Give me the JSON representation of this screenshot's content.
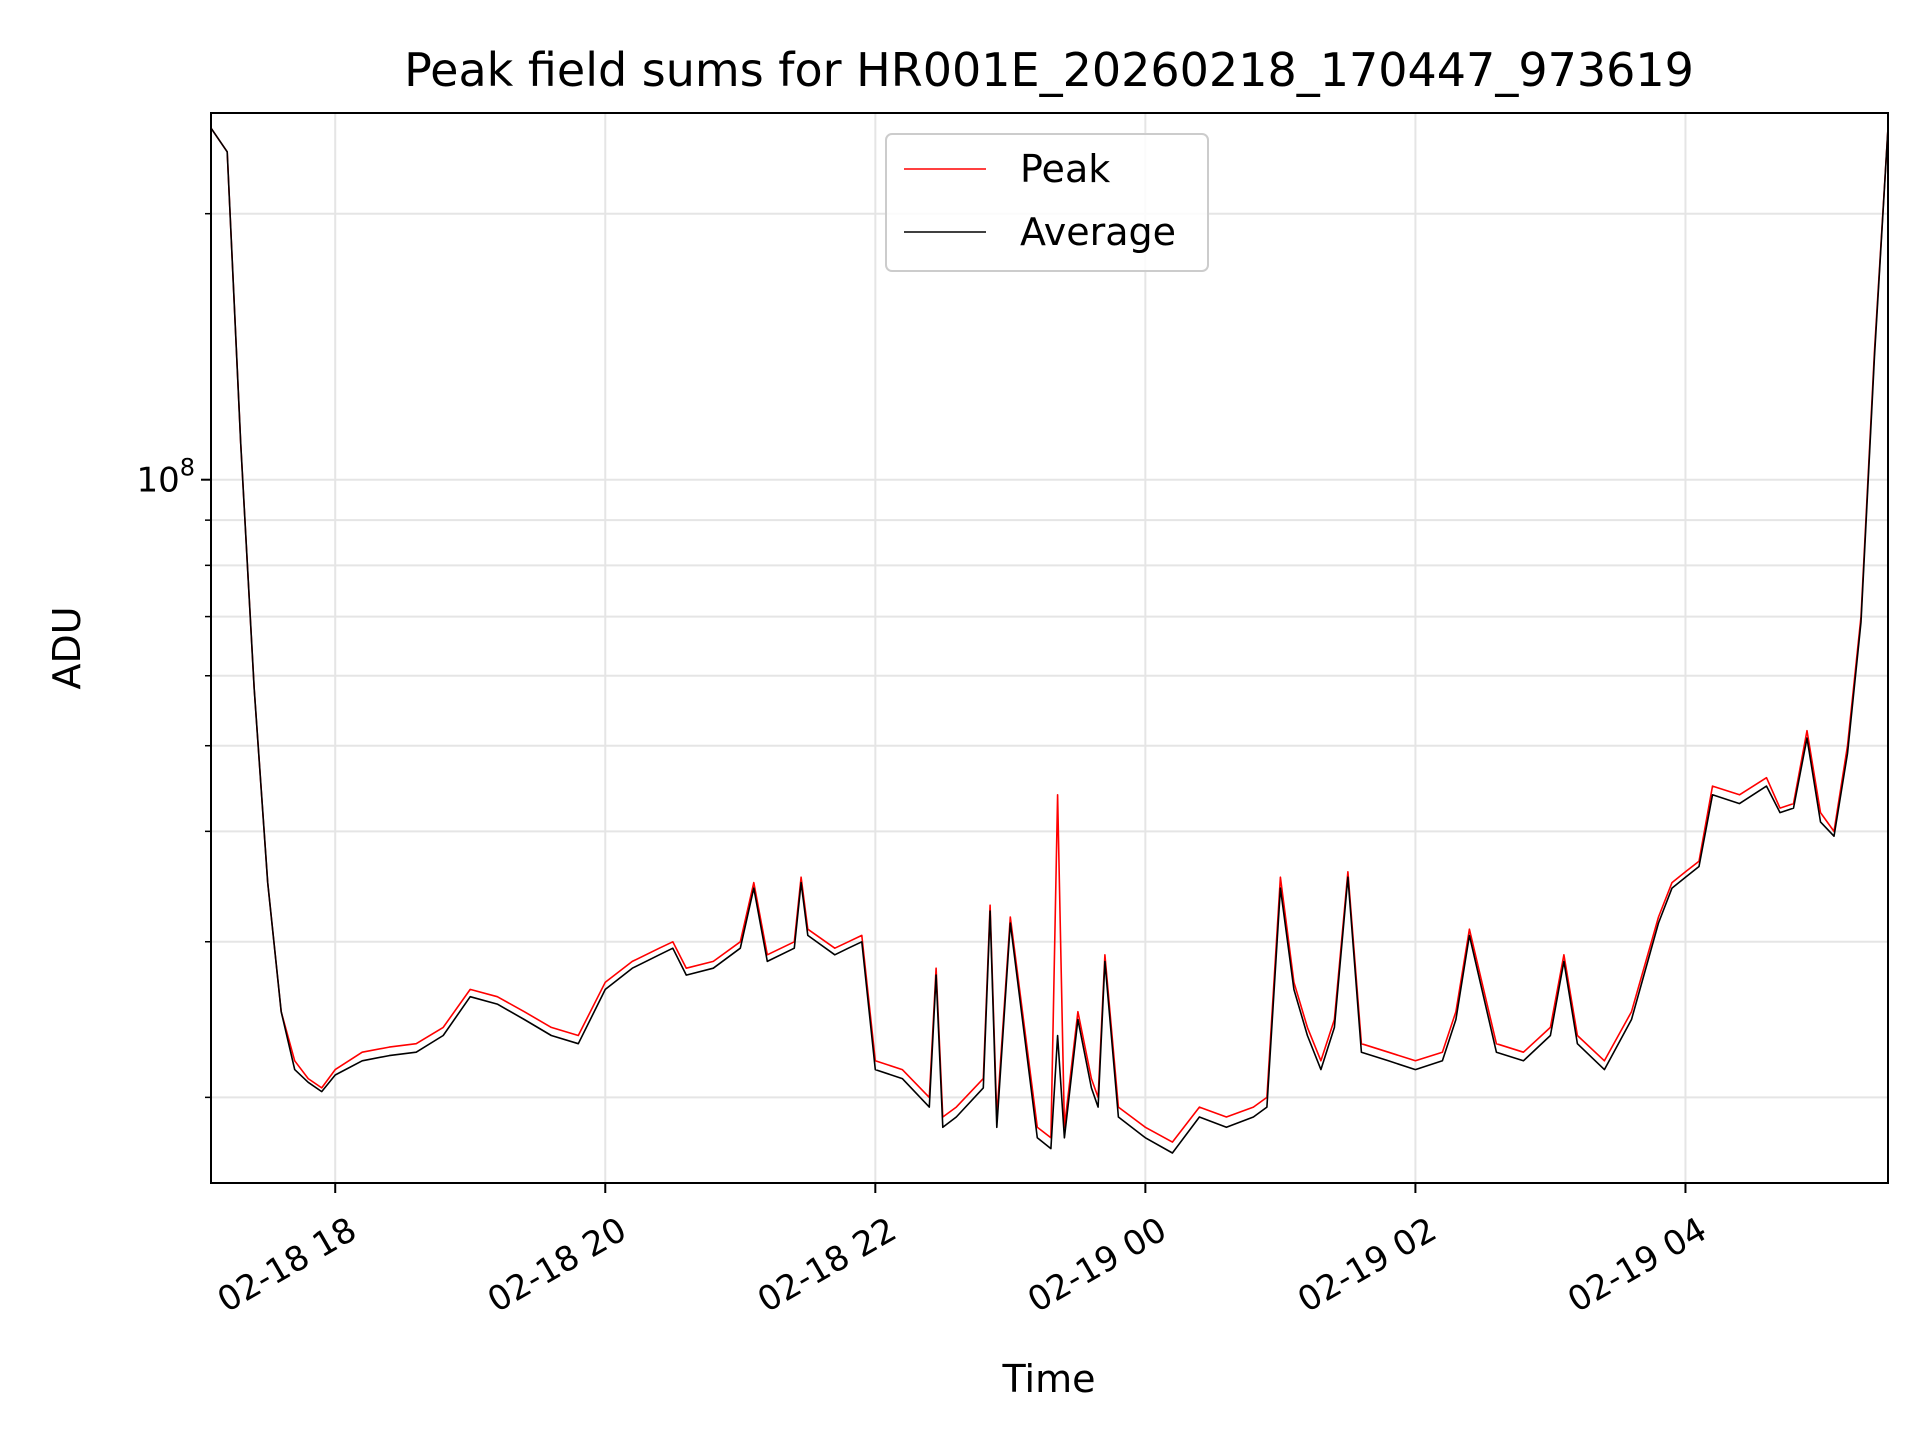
{
  "chart_data": {
    "type": "line",
    "title": "Peak field sums for HR001E_20260218_170447_973619",
    "xlabel": "Time",
    "ylabel": "ADU",
    "yscale": "log",
    "ylim": [
      16000000,
      260000000
    ],
    "xlim_hours": [
      17.08,
      29.5
    ],
    "y_major_tick": {
      "value": 100000000,
      "base": "10",
      "exponent": "8"
    },
    "y_minor_ticks": [
      20000000,
      30000000,
      40000000,
      50000000,
      60000000,
      70000000,
      80000000,
      90000000,
      200000000
    ],
    "x_ticks": [
      {
        "hours": 18,
        "label": "02-18 18"
      },
      {
        "hours": 20,
        "label": "02-18 20"
      },
      {
        "hours": 22,
        "label": "02-18 22"
      },
      {
        "hours": 24,
        "label": "02-19 00"
      },
      {
        "hours": 26,
        "label": "02-19 02"
      },
      {
        "hours": 28,
        "label": "02-19 04"
      }
    ],
    "grid": true,
    "legend_position": "top-center",
    "series": [
      {
        "name": "Peak",
        "color": "#ff0000"
      },
      {
        "name": "Average",
        "color": "#000000"
      }
    ],
    "x_hours": [
      17.08,
      17.2,
      17.3,
      17.4,
      17.5,
      17.6,
      17.7,
      17.8,
      17.9,
      18.0,
      18.2,
      18.4,
      18.6,
      18.8,
      19.0,
      19.2,
      19.4,
      19.6,
      19.8,
      20.0,
      20.2,
      20.4,
      20.5,
      20.6,
      20.8,
      21.0,
      21.1,
      21.2,
      21.4,
      21.45,
      21.5,
      21.7,
      21.8,
      21.9,
      22.0,
      22.2,
      22.4,
      22.45,
      22.5,
      22.6,
      22.8,
      22.85,
      22.9,
      23.0,
      23.2,
      23.3,
      23.35,
      23.4,
      23.5,
      23.6,
      23.65,
      23.7,
      23.8,
      24.0,
      24.2,
      24.4,
      24.6,
      24.8,
      24.9,
      25.0,
      25.1,
      25.2,
      25.3,
      25.4,
      25.5,
      25.6,
      25.8,
      26.0,
      26.2,
      26.3,
      26.4,
      26.6,
      26.8,
      27.0,
      27.1,
      27.2,
      27.4,
      27.6,
      27.8,
      27.9,
      28.0,
      28.1,
      28.2,
      28.4,
      28.6,
      28.7,
      28.8,
      28.9,
      29.0,
      29.1,
      29.2,
      29.3,
      29.4,
      29.5
    ],
    "peak": [
      250000000,
      235000000,
      110000000,
      58000000,
      35000000,
      25000000,
      22000000,
      21000000,
      20500000,
      21500000,
      22500000,
      22800000,
      23000000,
      24000000,
      26500000,
      26000000,
      25000000,
      24000000,
      23500000,
      27000000,
      28500000,
      29500000,
      30000000,
      28000000,
      28500000,
      30000000,
      35000000,
      29000000,
      30000000,
      35500000,
      31000000,
      29500000,
      30000000,
      30500000,
      22000000,
      21500000,
      20000000,
      28000000,
      19000000,
      19500000,
      21000000,
      33000000,
      19000000,
      32000000,
      18500000,
      18000000,
      44000000,
      18500000,
      25000000,
      21000000,
      20000000,
      29000000,
      19500000,
      18500000,
      17800000,
      19500000,
      19000000,
      19500000,
      20000000,
      35500000,
      27000000,
      24000000,
      22000000,
      24500000,
      36000000,
      23000000,
      22500000,
      22000000,
      22500000,
      25000000,
      31000000,
      23000000,
      22500000,
      24000000,
      29000000,
      23500000,
      22000000,
      25000000,
      32000000,
      35000000,
      36000000,
      37000000,
      45000000,
      44000000,
      46000000,
      42500000,
      43000000,
      52000000,
      42000000,
      40000000,
      50000000,
      70000000,
      140000000,
      250000000
    ],
    "average": [
      250000000,
      235000000,
      110000000,
      58000000,
      35000000,
      25000000,
      21500000,
      20800000,
      20300000,
      21200000,
      22000000,
      22300000,
      22500000,
      23500000,
      26000000,
      25500000,
      24500000,
      23500000,
      23000000,
      26500000,
      28000000,
      29000000,
      29500000,
      27500000,
      28000000,
      29500000,
      34500000,
      28500000,
      29500000,
      35000000,
      30500000,
      29000000,
      29500000,
      30000000,
      21500000,
      21000000,
      19500000,
      27500000,
      18500000,
      19000000,
      20500000,
      32500000,
      18500000,
      31500000,
      18000000,
      17500000,
      23500000,
      18000000,
      24500000,
      20500000,
      19500000,
      28500000,
      19000000,
      18000000,
      17300000,
      19000000,
      18500000,
      19000000,
      19500000,
      34500000,
      26500000,
      23500000,
      21500000,
      24000000,
      35500000,
      22500000,
      22000000,
      21500000,
      22000000,
      24500000,
      30500000,
      22500000,
      22000000,
      23500000,
      28500000,
      23000000,
      21500000,
      24500000,
      31500000,
      34500000,
      35500000,
      36500000,
      44000000,
      43000000,
      45000000,
      42000000,
      42500000,
      51000000,
      41000000,
      39500000,
      49000000,
      69000000,
      138000000,
      250000000
    ]
  }
}
